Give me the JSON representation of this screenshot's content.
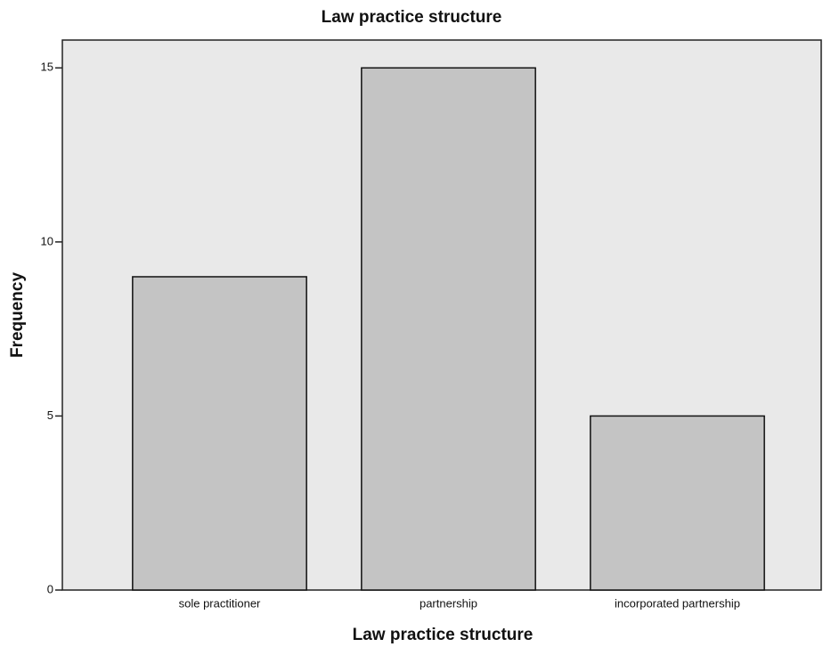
{
  "chart_data": {
    "type": "bar",
    "title": "Law practice structure",
    "x_label": "Law practice structure",
    "y_label": "Frequency",
    "categories": [
      "sole practitioner",
      "partnership",
      "incorporated partnership"
    ],
    "values": [
      9,
      15,
      5
    ],
    "color": "#c4c4c4",
    "ylim": [
      0,
      15.8
    ],
    "yticks": [
      0,
      5,
      10,
      15
    ],
    "grid": false
  }
}
